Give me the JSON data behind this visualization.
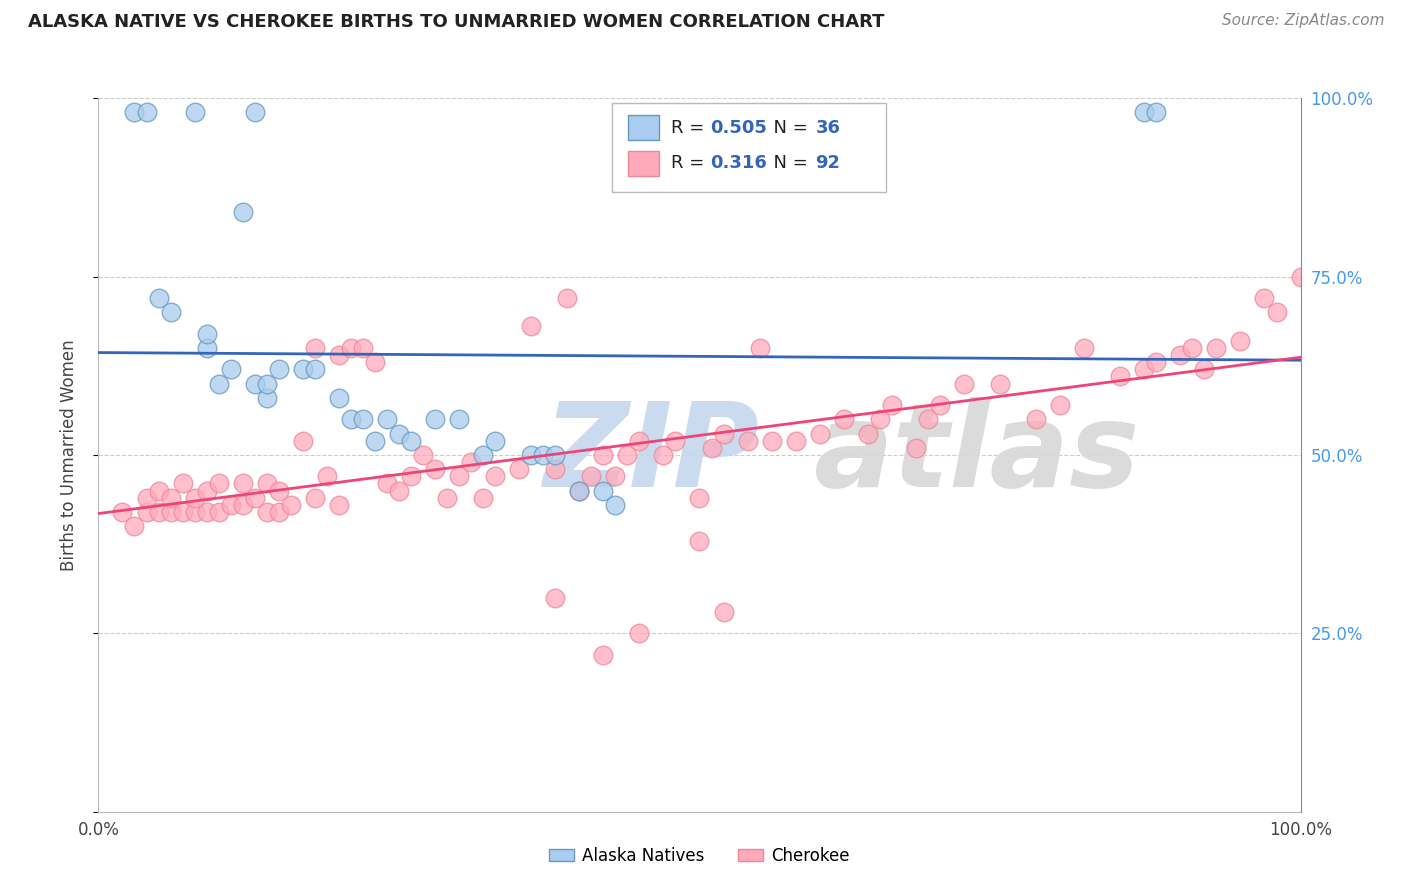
{
  "title": "ALASKA NATIVE VS CHEROKEE BIRTHS TO UNMARRIED WOMEN CORRELATION CHART",
  "source": "Source: ZipAtlas.com",
  "ylabel": "Births to Unmarried Women",
  "xlim": [
    0.0,
    1.0
  ],
  "ylim": [
    0.0,
    1.0
  ],
  "blue_R": 0.505,
  "blue_N": 36,
  "pink_R": 0.316,
  "pink_N": 92,
  "blue_color": "#AACCEE",
  "pink_color": "#FFAABB",
  "blue_edge_color": "#6699BB",
  "pink_edge_color": "#EE8899",
  "blue_line_color": "#3366BB",
  "pink_line_color": "#EE4477",
  "watermark_zip_color": "#C5D8EE",
  "watermark_atlas_color": "#D8D8D8",
  "legend_blue_label": "Alaska Natives",
  "legend_pink_label": "Cherokee",
  "right_axis_color": "#4499EE",
  "blue_scatter_x": [
    0.03,
    0.04,
    0.08,
    0.13,
    0.05,
    0.06,
    0.09,
    0.09,
    0.1,
    0.11,
    0.12,
    0.13,
    0.14,
    0.14,
    0.15,
    0.17,
    0.18,
    0.2,
    0.21,
    0.22,
    0.23,
    0.24,
    0.25,
    0.26,
    0.28,
    0.3,
    0.32,
    0.33,
    0.36,
    0.37,
    0.38,
    0.4,
    0.42,
    0.43,
    0.87,
    0.88
  ],
  "blue_scatter_y": [
    0.98,
    0.98,
    0.98,
    0.98,
    0.72,
    0.7,
    0.65,
    0.67,
    0.6,
    0.62,
    0.84,
    0.6,
    0.58,
    0.6,
    0.62,
    0.62,
    0.62,
    0.58,
    0.55,
    0.55,
    0.52,
    0.55,
    0.53,
    0.52,
    0.55,
    0.55,
    0.5,
    0.52,
    0.5,
    0.5,
    0.5,
    0.45,
    0.45,
    0.43,
    0.98,
    0.98
  ],
  "pink_scatter_x": [
    0.02,
    0.03,
    0.04,
    0.04,
    0.05,
    0.05,
    0.06,
    0.06,
    0.07,
    0.07,
    0.08,
    0.08,
    0.09,
    0.09,
    0.1,
    0.1,
    0.11,
    0.12,
    0.12,
    0.13,
    0.14,
    0.14,
    0.15,
    0.15,
    0.16,
    0.17,
    0.18,
    0.18,
    0.19,
    0.2,
    0.2,
    0.21,
    0.22,
    0.23,
    0.24,
    0.25,
    0.26,
    0.27,
    0.28,
    0.29,
    0.3,
    0.31,
    0.32,
    0.33,
    0.35,
    0.36,
    0.38,
    0.39,
    0.4,
    0.41,
    0.42,
    0.43,
    0.44,
    0.45,
    0.47,
    0.48,
    0.5,
    0.51,
    0.52,
    0.54,
    0.55,
    0.56,
    0.58,
    0.6,
    0.62,
    0.64,
    0.65,
    0.66,
    0.68,
    0.69,
    0.7,
    0.72,
    0.75,
    0.78,
    0.8,
    0.82,
    0.85,
    0.87,
    0.88,
    0.9,
    0.91,
    0.92,
    0.93,
    0.95,
    0.97,
    0.98,
    1.0,
    0.5,
    0.38,
    0.42,
    0.45,
    0.52
  ],
  "pink_scatter_y": [
    0.42,
    0.4,
    0.42,
    0.44,
    0.42,
    0.45,
    0.42,
    0.44,
    0.42,
    0.46,
    0.42,
    0.44,
    0.42,
    0.45,
    0.42,
    0.46,
    0.43,
    0.43,
    0.46,
    0.44,
    0.42,
    0.46,
    0.42,
    0.45,
    0.43,
    0.52,
    0.44,
    0.65,
    0.47,
    0.43,
    0.64,
    0.65,
    0.65,
    0.63,
    0.46,
    0.45,
    0.47,
    0.5,
    0.48,
    0.44,
    0.47,
    0.49,
    0.44,
    0.47,
    0.48,
    0.68,
    0.48,
    0.72,
    0.45,
    0.47,
    0.5,
    0.47,
    0.5,
    0.52,
    0.5,
    0.52,
    0.44,
    0.51,
    0.53,
    0.52,
    0.65,
    0.52,
    0.52,
    0.53,
    0.55,
    0.53,
    0.55,
    0.57,
    0.51,
    0.55,
    0.57,
    0.6,
    0.6,
    0.55,
    0.57,
    0.65,
    0.61,
    0.62,
    0.63,
    0.64,
    0.65,
    0.62,
    0.65,
    0.66,
    0.72,
    0.7,
    0.75,
    0.38,
    0.3,
    0.22,
    0.25,
    0.28
  ],
  "background_color": "#FFFFFF",
  "grid_color": "#CCCCCC",
  "title_fontsize": 13,
  "source_fontsize": 11,
  "tick_fontsize": 12,
  "ylabel_fontsize": 12
}
